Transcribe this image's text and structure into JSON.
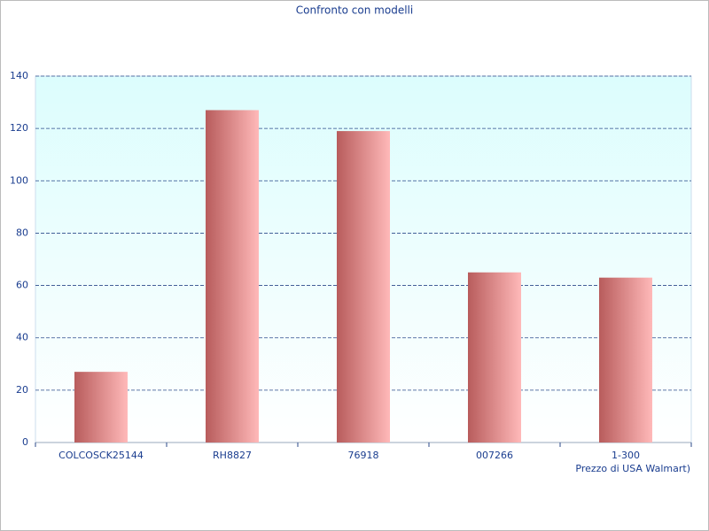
{
  "chart_data": {
    "type": "bar",
    "title": "Confronto con modelli",
    "x_label": "Prezzo di USA Walmart)",
    "categories": [
      "COLCOSCK25144",
      "RH8827",
      "76918",
      "007266",
      "1-300"
    ],
    "values": [
      27,
      127,
      119,
      65,
      63
    ],
    "color": "#b85c5c",
    "ylim": [
      0,
      140
    ],
    "yticks": [
      0,
      20,
      40,
      60,
      80,
      100,
      120,
      140
    ],
    "grid": true
  }
}
